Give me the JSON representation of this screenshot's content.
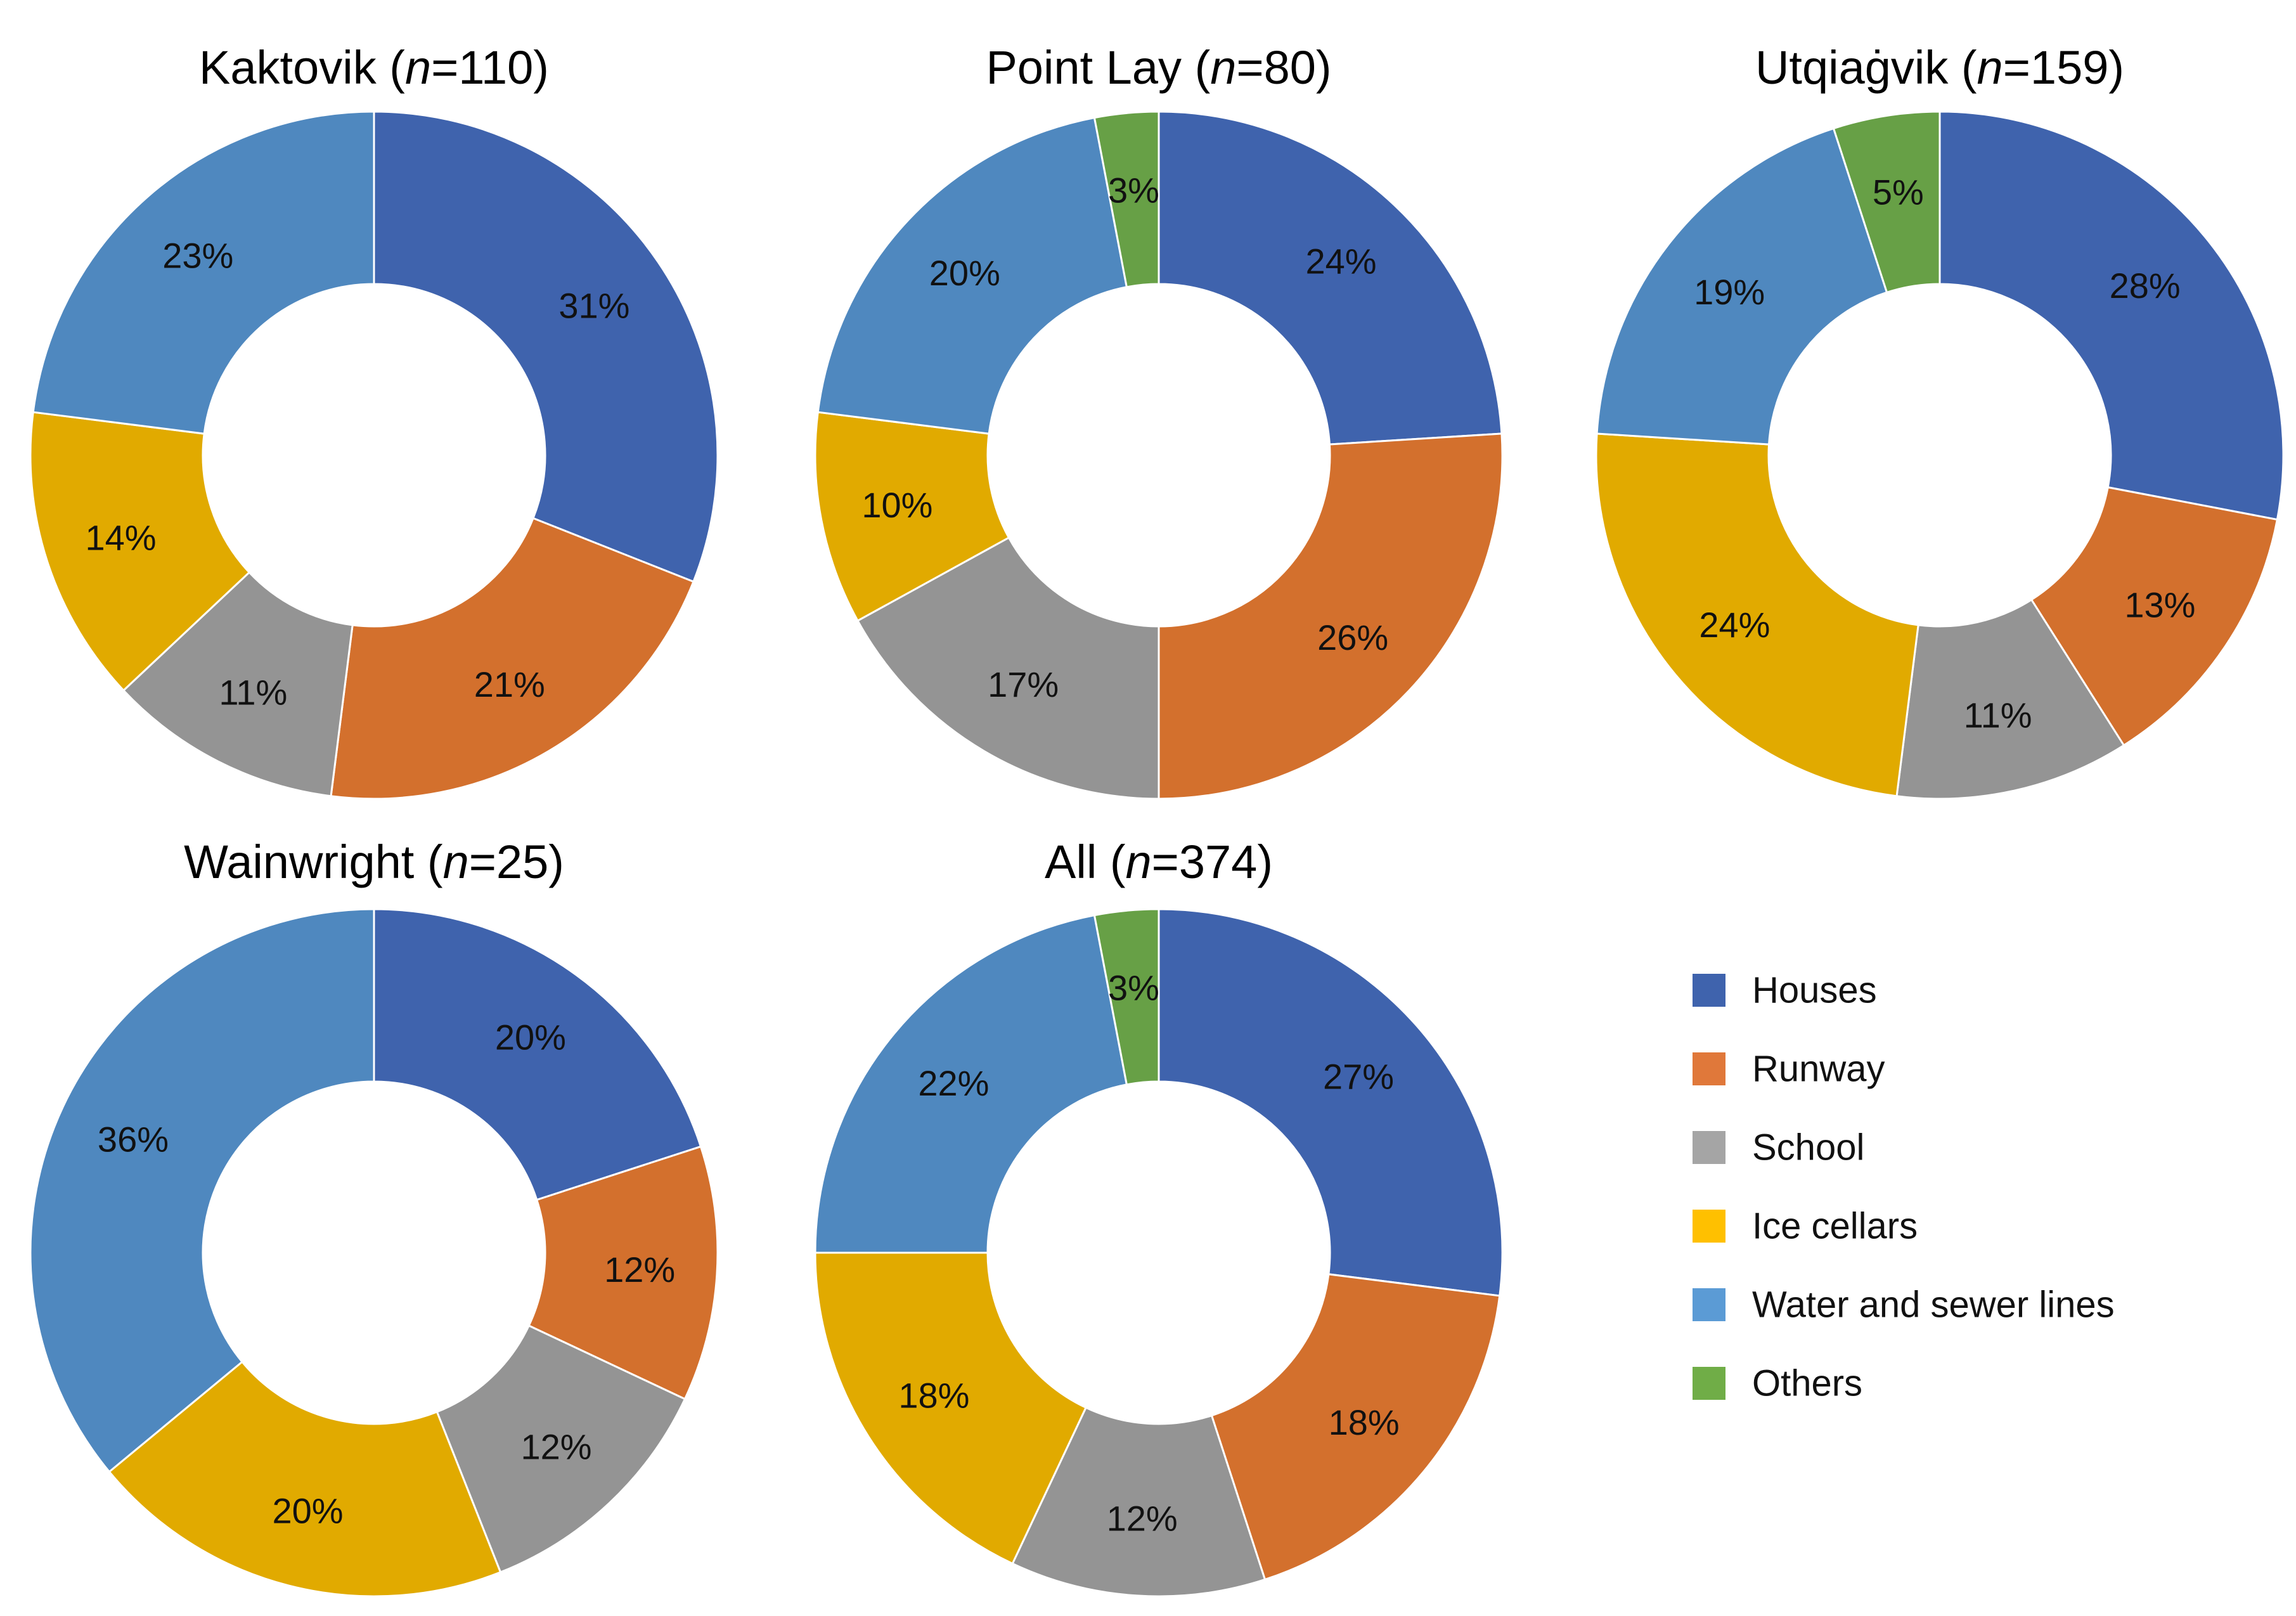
{
  "chart_data": {
    "type": "donut",
    "categories": [
      "Houses",
      "Runway",
      "School",
      "Ice cellars",
      "Water and sewer lines",
      "Others"
    ],
    "colors": {
      "Houses": "#3f63ad",
      "Runway": "#d3702d",
      "School": "#949494",
      "Ice cellars": "#e1aa00",
      "Water and sewer lines": "#4f88bf",
      "Others": "#67a046"
    },
    "legend": {
      "placement": "bottom-right",
      "items": [
        {
          "label": "Houses",
          "color": "#3f63ad"
        },
        {
          "label": "Runway",
          "color": "#e0783a"
        },
        {
          "label": "School",
          "color": "#a5a5a5"
        },
        {
          "label": "Ice cellars",
          "color": "#ffc000"
        },
        {
          "label": "Water and sewer lines",
          "color": "#5b9bd5"
        },
        {
          "label": "Others",
          "color": "#70ad47"
        }
      ]
    },
    "charts": [
      {
        "id": "kaktovik",
        "title": "Kaktovik",
        "n_prefix": "(",
        "n_italic": "n",
        "n_suffix": "=110)",
        "values": {
          "Houses": 31,
          "Runway": 21,
          "School": 11,
          "Ice cellars": 14,
          "Water and sewer lines": 23,
          "Others": 0
        },
        "labels": {
          "Houses": "31%",
          "Runway": "21%",
          "School": "11%",
          "Ice cellars": "14%",
          "Water and sewer lines": "23%"
        }
      },
      {
        "id": "point-lay",
        "title": "Point Lay",
        "n_prefix": "(",
        "n_italic": "n",
        "n_suffix": "=80)",
        "values": {
          "Houses": 24,
          "Runway": 26,
          "School": 17,
          "Ice cellars": 10,
          "Water and sewer lines": 20,
          "Others": 3
        },
        "labels": {
          "Houses": "24%",
          "Runway": "26%",
          "School": "17%",
          "Ice cellars": "10%",
          "Water and sewer lines": "20%",
          "Others": "3%"
        }
      },
      {
        "id": "utqiagvik",
        "title": "Utqiaġvik",
        "n_prefix": "(",
        "n_italic": "n",
        "n_suffix": "=159)",
        "values": {
          "Houses": 28,
          "Runway": 13,
          "School": 11,
          "Ice cellars": 24,
          "Water and sewer lines": 19,
          "Others": 5
        },
        "labels": {
          "Houses": "28%",
          "Runway": "13%",
          "School": "11%",
          "Ice cellars": "24%",
          "Water and sewer lines": "19%",
          "Others": "5%"
        }
      },
      {
        "id": "wainwright",
        "title": "Wainwright",
        "n_prefix": "(",
        "n_italic": "n",
        "n_suffix": "=25)",
        "values": {
          "Houses": 20,
          "Runway": 12,
          "School": 12,
          "Ice cellars": 20,
          "Water and sewer lines": 36,
          "Others": 0
        },
        "labels": {
          "Houses": "20%",
          "Runway": "12%",
          "School": "12%",
          "Ice cellars": "20%",
          "Water and sewer lines": "36%"
        }
      },
      {
        "id": "all",
        "title": "All",
        "n_prefix": "(",
        "n_italic": "n",
        "n_suffix": "=374)",
        "values": {
          "Houses": 27,
          "Runway": 18,
          "School": 12,
          "Ice cellars": 18,
          "Water and sewer lines": 22,
          "Others": 3
        },
        "labels": {
          "Houses": "27%",
          "Runway": "18%",
          "School": "12%",
          "Ice cellars": "18%",
          "Water and sewer lines": "22%",
          "Others": "3%"
        }
      }
    ]
  }
}
